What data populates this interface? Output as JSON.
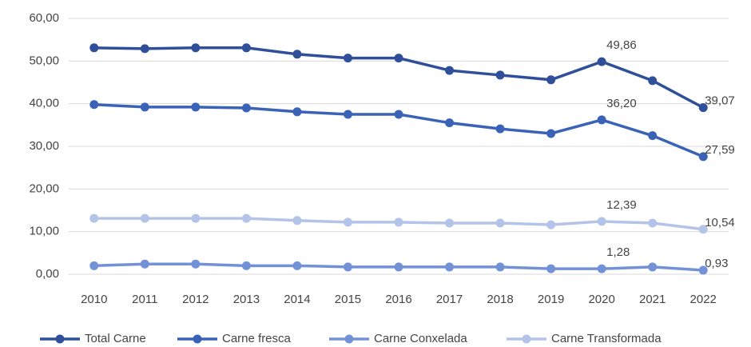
{
  "chart_data": {
    "type": "line",
    "categories": [
      "2010",
      "2011",
      "2012",
      "2013",
      "2014",
      "2015",
      "2016",
      "2017",
      "2018",
      "2019",
      "2020",
      "2021",
      "2022"
    ],
    "series": [
      {
        "name": "Total Carne",
        "color": "#2f4f9b",
        "values": [
          53.1,
          52.9,
          53.1,
          53.1,
          51.6,
          50.7,
          50.7,
          47.8,
          46.7,
          45.6,
          49.86,
          45.4,
          39.07
        ],
        "value_labels": [
          null,
          null,
          null,
          null,
          null,
          null,
          null,
          null,
          null,
          null,
          "49,86",
          null,
          "39,07"
        ]
      },
      {
        "name": "Carne fresca",
        "color": "#3a63b8",
        "values": [
          39.8,
          39.2,
          39.2,
          39.0,
          38.1,
          37.5,
          37.5,
          35.5,
          34.1,
          33.0,
          36.2,
          32.5,
          27.59
        ],
        "value_labels": [
          null,
          null,
          null,
          null,
          null,
          null,
          null,
          null,
          null,
          null,
          "36,20",
          null,
          "27,59"
        ]
      },
      {
        "name": "Carne Conxelada",
        "color": "#7391d6",
        "values": [
          2.0,
          2.4,
          2.4,
          2.0,
          2.0,
          1.7,
          1.7,
          1.7,
          1.7,
          1.3,
          1.28,
          1.7,
          0.93
        ],
        "value_labels": [
          null,
          null,
          null,
          null,
          null,
          null,
          null,
          null,
          null,
          null,
          "1,28",
          null,
          "0,93"
        ]
      },
      {
        "name": "Carne Transformada",
        "color": "#b4c3e8",
        "values": [
          13.1,
          13.1,
          13.1,
          13.1,
          12.6,
          12.2,
          12.2,
          12.0,
          12.0,
          11.6,
          12.39,
          12.0,
          10.54
        ],
        "value_labels": [
          null,
          null,
          null,
          null,
          null,
          null,
          null,
          null,
          null,
          null,
          "12,39",
          null,
          "10,54"
        ]
      }
    ],
    "ylim": [
      0,
      60
    ],
    "yticks": [
      {
        "value": 0,
        "label": "0,00"
      },
      {
        "value": 10,
        "label": "10,00"
      },
      {
        "value": 20,
        "label": "20,00"
      },
      {
        "value": 30,
        "label": "30,00"
      },
      {
        "value": 40,
        "label": "40,00"
      },
      {
        "value": 50,
        "label": "50,00"
      },
      {
        "value": 60,
        "label": "60,00"
      }
    ],
    "grid": true,
    "legend": "bottom"
  }
}
